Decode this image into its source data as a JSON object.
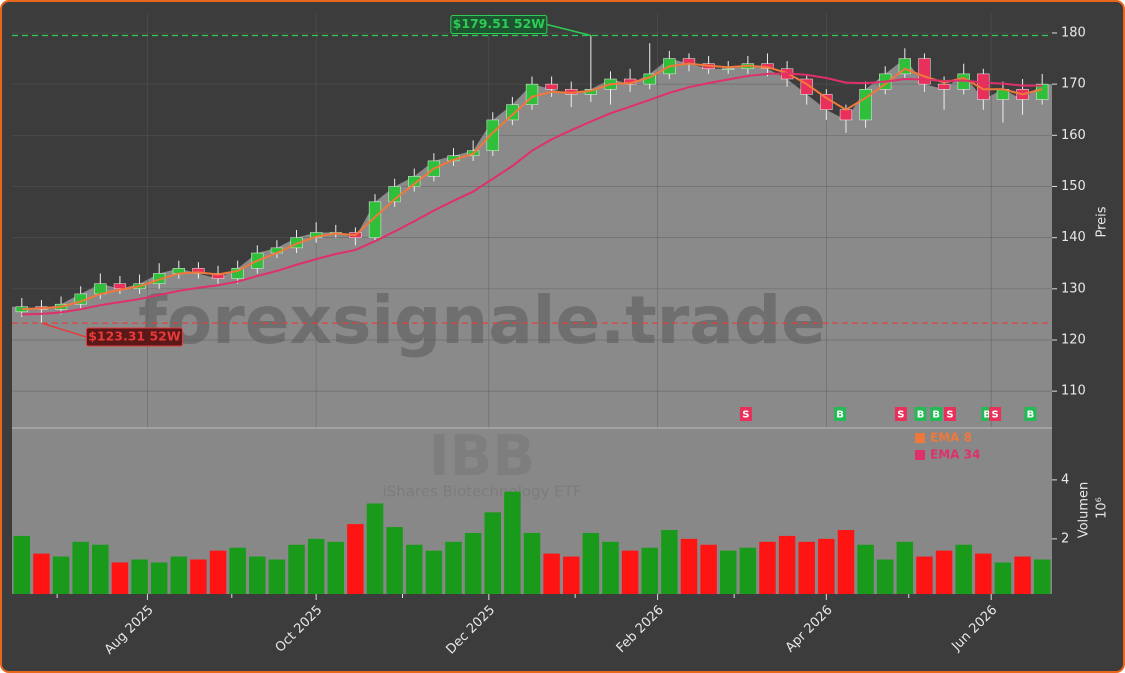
{
  "chart_data": {
    "type": "candlestick",
    "watermark": "forexsignale.trade",
    "symbol": "IBB",
    "symbol_name": "iShares Biotechnology ETF",
    "ylabel": "Preis",
    "volume_label": "Volumen",
    "volume_multiplier": "10⁶",
    "xlim": [
      -0.5,
      52.5
    ],
    "xticks": [
      {
        "value": 6.4,
        "label": "Aug 2025"
      },
      {
        "value": 15.0,
        "label": "Oct 2025"
      },
      {
        "value": 23.8,
        "label": "Dec 2025"
      },
      {
        "value": 32.4,
        "label": "Feb 2026"
      },
      {
        "value": 41.0,
        "label": "Apr 2026"
      },
      {
        "value": 49.4,
        "label": "Jun 2026"
      }
    ],
    "xminor": [
      1.8,
      10.7,
      19.4,
      28.2,
      36.3,
      45.2
    ],
    "ylim": [
      102.8,
      183.9
    ],
    "yticks": [
      110,
      120,
      130,
      140,
      150,
      160,
      170,
      180
    ],
    "grid": true,
    "up_color": "#2fbf3a",
    "down_color": "#e8305a",
    "area_color": "#8a8a8a",
    "open": [
      125.5,
      126.5,
      126,
      127,
      129,
      131,
      130,
      131,
      133,
      134,
      133,
      132,
      134,
      137,
      138,
      140,
      141,
      141,
      140,
      147,
      150,
      152,
      155,
      156,
      157,
      163,
      166,
      170,
      169,
      168,
      169,
      171,
      170,
      172,
      175,
      174,
      173,
      173,
      174,
      173,
      171,
      168,
      165,
      163,
      169,
      172,
      175,
      170,
      169,
      172,
      167,
      169,
      167
    ],
    "high": [
      128.2,
      127.8,
      128.5,
      130.5,
      133,
      132.5,
      132.8,
      135,
      135.5,
      135.2,
      134.5,
      135.5,
      138.5,
      139.5,
      141.5,
      143,
      142.5,
      142,
      148.5,
      151.5,
      153.5,
      156.5,
      157.5,
      159,
      164.5,
      167.5,
      171.5,
      171.5,
      170.5,
      179.51,
      172.5,
      173,
      178,
      176.5,
      176,
      175.5,
      174.5,
      175.5,
      176,
      174.5,
      172,
      169,
      166,
      170.5,
      173.5,
      177,
      176,
      171.5,
      174,
      173,
      170.5,
      171,
      172
    ],
    "low": [
      124.5,
      123.31,
      125,
      126,
      128,
      129,
      129,
      130,
      132,
      132,
      131,
      131,
      133,
      136,
      137,
      139,
      140,
      138.5,
      139.5,
      146,
      149,
      151,
      154,
      155,
      156,
      162,
      165,
      167.5,
      165.5,
      166.5,
      166,
      168.5,
      169,
      171,
      172.5,
      172,
      172,
      172,
      171.5,
      169.5,
      166,
      163,
      160.5,
      161.5,
      168,
      171,
      168.5,
      165,
      168,
      165,
      162.5,
      164,
      166
    ],
    "close": [
      126.5,
      126,
      127,
      129,
      131,
      130,
      131,
      133,
      134,
      133,
      132,
      134,
      137,
      138,
      140,
      141,
      141,
      140,
      147,
      150,
      152,
      155,
      156,
      157,
      163,
      166,
      170,
      169,
      168,
      169,
      171,
      170,
      172,
      175,
      174,
      173,
      173,
      174,
      173,
      171,
      168,
      165,
      163,
      169,
      172,
      175,
      170,
      169,
      172,
      167,
      169,
      167,
      170
    ],
    "series": [
      {
        "name": "EMA 8",
        "color": "#f0783a",
        "values": [
          126,
          126.2,
          126.5,
          127.5,
          129,
          129.8,
          130.5,
          131.8,
          133,
          133.2,
          132.8,
          133.5,
          135.5,
          137,
          138.8,
          140.2,
          140.8,
          140.5,
          144,
          147.5,
          150.5,
          153.5,
          155.2,
          156.4,
          160.5,
          164,
          167.5,
          168.5,
          168.3,
          168.7,
          170,
          170.2,
          171.3,
          173.5,
          174,
          173.6,
          173.3,
          173.6,
          173.3,
          172.2,
          170,
          167.3,
          165,
          167.3,
          170,
          173,
          171.5,
          170.3,
          171.2,
          169,
          169,
          168,
          169
        ]
      },
      {
        "name": "EMA 34",
        "color": "#e0306a",
        "values": [
          125,
          125.1,
          125.4,
          126,
          126.8,
          127.4,
          128,
          128.8,
          129.6,
          130.2,
          130.7,
          131.4,
          132.5,
          133.5,
          134.7,
          135.8,
          136.8,
          137.6,
          139.3,
          141.2,
          143.2,
          145.3,
          147.2,
          149,
          151.5,
          154,
          157,
          159.2,
          161,
          162.7,
          164.3,
          165.6,
          166.9,
          168.3,
          169.4,
          170.2,
          170.9,
          171.6,
          172,
          172.1,
          171.8,
          171.2,
          170.3,
          170.2,
          170.5,
          171,
          170.9,
          170.6,
          170.7,
          170.3,
          170.1,
          169.7,
          169.7
        ]
      }
    ],
    "legend": "upper right",
    "volume": {
      "ylim": [
        0.13,
        5.76
      ],
      "yticks": [
        2,
        4
      ],
      "up_color": "#1a9a1a",
      "down_color": "#ff1414",
      "values": [
        2.1,
        1.5,
        1.4,
        1.9,
        1.8,
        1.2,
        1.3,
        1.2,
        1.4,
        1.3,
        1.6,
        1.7,
        1.4,
        1.3,
        1.8,
        2.0,
        1.9,
        2.5,
        3.2,
        2.4,
        1.8,
        1.6,
        1.9,
        2.2,
        2.9,
        3.6,
        2.2,
        1.5,
        1.4,
        2.2,
        1.9,
        1.6,
        1.7,
        2.3,
        2.0,
        1.8,
        1.6,
        1.7,
        1.9,
        2.1,
        1.9,
        2.0,
        2.3,
        1.8,
        1.3,
        1.9,
        1.4,
        1.6,
        1.8,
        1.5,
        1.2,
        1.4,
        1.3
      ]
    },
    "annotations": [
      {
        "text": "$179.51 52W",
        "value": 179.51,
        "x": 29,
        "color": "#2ecc55"
      },
      {
        "text": "$123.31 52W",
        "value": 123.31,
        "x": 1,
        "color": "#e83a3a"
      }
    ],
    "signals": [
      {
        "x": 36.9,
        "label": "S",
        "color": "#e8305a"
      },
      {
        "x": 41.7,
        "label": "B",
        "color": "#22bb55"
      },
      {
        "x": 44.8,
        "label": "S",
        "color": "#e8305a"
      },
      {
        "x": 45.8,
        "label": "B",
        "color": "#22bb55"
      },
      {
        "x": 46.6,
        "label": "B",
        "color": "#22bb55"
      },
      {
        "x": 47.3,
        "label": "S",
        "color": "#e8305a"
      },
      {
        "x": 49.2,
        "label": "B",
        "color": "#22bb55"
      },
      {
        "x": 49.6,
        "label": "S",
        "color": "#e8305a"
      },
      {
        "x": 51.4,
        "label": "B",
        "color": "#22bb55"
      }
    ]
  }
}
